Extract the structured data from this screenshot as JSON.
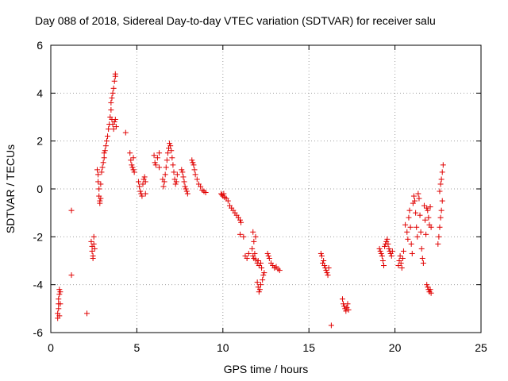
{
  "chart_data": {
    "type": "scatter",
    "title": "Day 088 of 2018, Sidereal Day-to-day VTEC variation (SDTVAR) for receiver salu",
    "xlabel": "GPS time / hours",
    "ylabel": "SDTVAR / TECUs",
    "xlim": [
      0,
      25
    ],
    "ylim": [
      -6,
      6
    ],
    "xticks": [
      0,
      5,
      10,
      15,
      20,
      25
    ],
    "yticks": [
      -6,
      -4,
      -2,
      0,
      2,
      4,
      6
    ],
    "xtick_labels": [
      "0",
      "5",
      "10",
      "15",
      "20",
      "25"
    ],
    "ytick_labels": [
      "-6",
      "-4",
      "-2",
      "0",
      "2",
      "4",
      "6"
    ],
    "grid": true,
    "marker": "+",
    "color": "#e00000",
    "series": [
      {
        "name": "SDTVAR",
        "points": [
          [
            0.4,
            -5.4
          ],
          [
            0.4,
            -5.2
          ],
          [
            0.45,
            -5.0
          ],
          [
            0.45,
            -4.8
          ],
          [
            0.45,
            -4.6
          ],
          [
            0.5,
            -4.4
          ],
          [
            0.5,
            -4.2
          ],
          [
            0.55,
            -4.3
          ],
          [
            0.55,
            -4.8
          ],
          [
            0.5,
            -5.3
          ],
          [
            1.2,
            -3.6
          ],
          [
            1.2,
            -0.9
          ],
          [
            2.1,
            -5.2
          ],
          [
            2.35,
            -2.2
          ],
          [
            2.4,
            -2.4
          ],
          [
            2.4,
            -2.6
          ],
          [
            2.45,
            -2.8
          ],
          [
            2.45,
            -2.9
          ],
          [
            2.5,
            -2.3
          ],
          [
            2.5,
            -2.0
          ],
          [
            2.55,
            -2.5
          ],
          [
            2.7,
            0.8
          ],
          [
            2.75,
            0.6
          ],
          [
            2.75,
            0.3
          ],
          [
            2.8,
            0.0
          ],
          [
            2.8,
            -0.3
          ],
          [
            2.85,
            -0.5
          ],
          [
            2.85,
            -0.6
          ],
          [
            2.9,
            -0.4
          ],
          [
            2.9,
            0.2
          ],
          [
            2.95,
            0.7
          ],
          [
            3.0,
            0.9
          ],
          [
            3.05,
            1.1
          ],
          [
            3.1,
            1.3
          ],
          [
            3.1,
            1.5
          ],
          [
            3.15,
            1.6
          ],
          [
            3.2,
            1.8
          ],
          [
            3.25,
            2.0
          ],
          [
            3.3,
            2.2
          ],
          [
            3.35,
            2.5
          ],
          [
            3.4,
            2.7
          ],
          [
            3.45,
            3.0
          ],
          [
            3.5,
            3.3
          ],
          [
            3.5,
            3.6
          ],
          [
            3.55,
            3.8
          ],
          [
            3.6,
            4.0
          ],
          [
            3.65,
            4.2
          ],
          [
            3.7,
            4.5
          ],
          [
            3.75,
            4.7
          ],
          [
            3.75,
            4.8
          ],
          [
            3.55,
            2.9
          ],
          [
            3.6,
            2.7
          ],
          [
            3.65,
            2.5
          ],
          [
            3.7,
            2.8
          ],
          [
            3.75,
            2.9
          ],
          [
            3.8,
            2.6
          ],
          [
            4.35,
            2.35
          ],
          [
            4.6,
            1.5
          ],
          [
            4.65,
            1.2
          ],
          [
            4.7,
            1.0
          ],
          [
            4.75,
            0.9
          ],
          [
            4.8,
            0.8
          ],
          [
            4.85,
            0.7
          ],
          [
            4.8,
            1.3
          ],
          [
            5.1,
            0.3
          ],
          [
            5.15,
            0.1
          ],
          [
            5.2,
            -0.1
          ],
          [
            5.25,
            -0.2
          ],
          [
            5.3,
            -0.3
          ],
          [
            5.35,
            0.2
          ],
          [
            5.4,
            0.4
          ],
          [
            5.45,
            0.5
          ],
          [
            5.5,
            0.3
          ],
          [
            5.5,
            -0.2
          ],
          [
            6.0,
            1.4
          ],
          [
            6.05,
            1.1
          ],
          [
            6.1,
            1.0
          ],
          [
            6.2,
            1.3
          ],
          [
            6.3,
            1.5
          ],
          [
            6.3,
            0.9
          ],
          [
            6.5,
            0.4
          ],
          [
            6.55,
            0.1
          ],
          [
            6.6,
            0.3
          ],
          [
            6.65,
            0.6
          ],
          [
            6.7,
            0.9
          ],
          [
            6.75,
            1.2
          ],
          [
            6.8,
            1.5
          ],
          [
            6.85,
            1.7
          ],
          [
            6.9,
            1.9
          ],
          [
            6.95,
            1.8
          ],
          [
            7.0,
            1.6
          ],
          [
            7.05,
            1.3
          ],
          [
            7.1,
            1.0
          ],
          [
            7.15,
            0.7
          ],
          [
            7.2,
            0.4
          ],
          [
            7.25,
            0.2
          ],
          [
            7.3,
            0.3
          ],
          [
            7.35,
            0.6
          ],
          [
            7.6,
            0.8
          ],
          [
            7.65,
            0.7
          ],
          [
            7.7,
            0.5
          ],
          [
            7.75,
            0.3
          ],
          [
            7.8,
            0.1
          ],
          [
            7.85,
            0.0
          ],
          [
            7.9,
            -0.1
          ],
          [
            7.95,
            -0.2
          ],
          [
            8.2,
            1.2
          ],
          [
            8.25,
            1.1
          ],
          [
            8.3,
            1.0
          ],
          [
            8.35,
            0.8
          ],
          [
            8.4,
            0.6
          ],
          [
            8.5,
            0.4
          ],
          [
            8.6,
            0.2
          ],
          [
            8.7,
            0.1
          ],
          [
            8.8,
            -0.05
          ],
          [
            8.9,
            -0.1
          ],
          [
            9.0,
            -0.15
          ],
          [
            9.9,
            -0.2
          ],
          [
            9.95,
            -0.25
          ],
          [
            10.0,
            -0.3
          ],
          [
            10.05,
            -0.2
          ],
          [
            10.1,
            -0.35
          ],
          [
            10.2,
            -0.4
          ],
          [
            10.3,
            -0.5
          ],
          [
            10.4,
            -0.7
          ],
          [
            10.5,
            -0.8
          ],
          [
            10.6,
            -0.9
          ],
          [
            10.7,
            -1.0
          ],
          [
            10.8,
            -1.1
          ],
          [
            10.9,
            -1.2
          ],
          [
            11.0,
            -1.3
          ],
          [
            11.05,
            -1.4
          ],
          [
            11.0,
            -1.9
          ],
          [
            11.2,
            -2.0
          ],
          [
            11.3,
            -2.8
          ],
          [
            11.4,
            -2.9
          ],
          [
            11.5,
            -2.7
          ],
          [
            11.7,
            -2.5
          ],
          [
            11.8,
            -2.2
          ],
          [
            11.9,
            -2.0
          ],
          [
            11.75,
            -1.8
          ],
          [
            11.75,
            -2.8
          ],
          [
            11.8,
            -2.9
          ],
          [
            11.85,
            -2.7
          ],
          [
            11.9,
            -2.95
          ],
          [
            12.0,
            -3.1
          ],
          [
            12.05,
            -3.0
          ],
          [
            12.1,
            -3.2
          ],
          [
            12.2,
            -3.1
          ],
          [
            12.25,
            -3.3
          ],
          [
            12.0,
            -3.9
          ],
          [
            12.05,
            -4.1
          ],
          [
            12.1,
            -4.3
          ],
          [
            12.15,
            -4.2
          ],
          [
            12.2,
            -4.0
          ],
          [
            12.3,
            -3.8
          ],
          [
            12.35,
            -3.6
          ],
          [
            12.4,
            -3.5
          ],
          [
            12.6,
            -2.7
          ],
          [
            12.65,
            -2.8
          ],
          [
            12.7,
            -2.9
          ],
          [
            12.8,
            -3.1
          ],
          [
            12.9,
            -3.2
          ],
          [
            13.0,
            -3.3
          ],
          [
            13.1,
            -3.25
          ],
          [
            13.2,
            -3.35
          ],
          [
            13.3,
            -3.4
          ],
          [
            15.7,
            -2.7
          ],
          [
            15.75,
            -2.8
          ],
          [
            15.8,
            -3.1
          ],
          [
            15.85,
            -3.0
          ],
          [
            15.9,
            -3.2
          ],
          [
            15.95,
            -3.3
          ],
          [
            16.0,
            -3.4
          ],
          [
            16.05,
            -3.5
          ],
          [
            16.1,
            -3.6
          ],
          [
            16.15,
            -3.3
          ],
          [
            16.3,
            -5.7
          ],
          [
            16.95,
            -4.6
          ],
          [
            17.0,
            -4.8
          ],
          [
            17.05,
            -4.9
          ],
          [
            17.1,
            -5.0
          ],
          [
            17.15,
            -5.1
          ],
          [
            17.2,
            -4.95
          ],
          [
            17.25,
            -4.8
          ],
          [
            17.3,
            -5.05
          ],
          [
            19.1,
            -2.5
          ],
          [
            19.15,
            -2.6
          ],
          [
            19.2,
            -2.7
          ],
          [
            19.25,
            -2.8
          ],
          [
            19.3,
            -3.0
          ],
          [
            19.35,
            -3.2
          ],
          [
            19.4,
            -2.4
          ],
          [
            19.45,
            -2.3
          ],
          [
            19.5,
            -2.2
          ],
          [
            19.55,
            -2.1
          ],
          [
            19.6,
            -2.3
          ],
          [
            19.65,
            -2.5
          ],
          [
            19.7,
            -2.6
          ],
          [
            19.75,
            -2.7
          ],
          [
            19.8,
            -2.8
          ],
          [
            19.85,
            -2.6
          ],
          [
            20.2,
            -3.2
          ],
          [
            20.25,
            -3.0
          ],
          [
            20.3,
            -2.8
          ],
          [
            20.35,
            -3.1
          ],
          [
            20.4,
            -3.3
          ],
          [
            20.45,
            -2.9
          ],
          [
            20.5,
            -2.6
          ],
          [
            20.6,
            -1.5
          ],
          [
            20.7,
            -1.8
          ],
          [
            20.75,
            -2.1
          ],
          [
            20.8,
            -1.2
          ],
          [
            20.85,
            -0.9
          ],
          [
            20.9,
            -1.6
          ],
          [
            20.95,
            -2.3
          ],
          [
            21.0,
            -2.7
          ],
          [
            21.05,
            -0.6
          ],
          [
            21.1,
            -0.3
          ],
          [
            21.15,
            -0.5
          ],
          [
            21.2,
            -1.0
          ],
          [
            21.25,
            -1.6
          ],
          [
            21.3,
            -2.0
          ],
          [
            21.35,
            -0.2
          ],
          [
            21.4,
            -0.4
          ],
          [
            21.45,
            -1.1
          ],
          [
            21.5,
            -1.8
          ],
          [
            21.55,
            -2.5
          ],
          [
            21.6,
            -2.9
          ],
          [
            21.65,
            -3.1
          ],
          [
            21.7,
            -0.7
          ],
          [
            21.75,
            -1.3
          ],
          [
            21.8,
            -1.9
          ],
          [
            21.85,
            -0.8
          ],
          [
            21.9,
            -0.9
          ],
          [
            21.95,
            -1.2
          ],
          [
            22.0,
            -1.5
          ],
          [
            22.05,
            -0.75
          ],
          [
            22.1,
            -1.6
          ],
          [
            21.85,
            -4.0
          ],
          [
            21.9,
            -4.1
          ],
          [
            21.95,
            -4.2
          ],
          [
            22.0,
            -4.3
          ],
          [
            22.05,
            -4.2
          ],
          [
            22.1,
            -4.35
          ],
          [
            22.5,
            -2.3
          ],
          [
            22.55,
            -2.0
          ],
          [
            22.6,
            -1.6
          ],
          [
            22.65,
            -1.2
          ],
          [
            22.7,
            -0.9
          ],
          [
            22.75,
            -0.5
          ],
          [
            22.6,
            -0.1
          ],
          [
            22.65,
            0.2
          ],
          [
            22.7,
            0.4
          ],
          [
            22.75,
            0.7
          ],
          [
            22.8,
            1.0
          ]
        ]
      }
    ]
  }
}
